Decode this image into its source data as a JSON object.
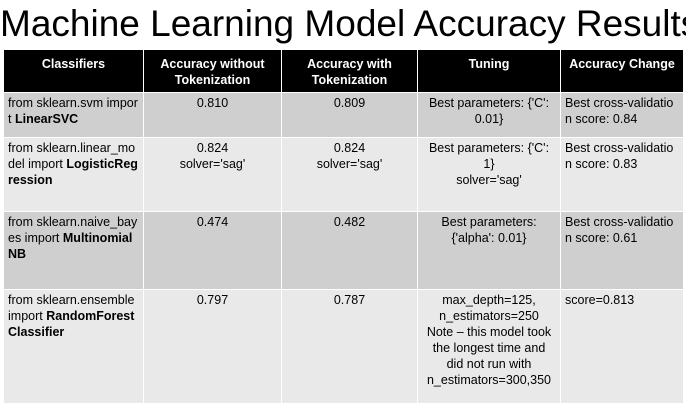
{
  "title": "Machine Learning Model Accuracy Results",
  "table": {
    "headers": [
      "Classifiers",
      "Accuracy without Tokenization",
      "Accuracy with Tokenization",
      "Tuning",
      "Accuracy Change"
    ],
    "rows": [
      {
        "classifier_import": "from sklearn.svm import",
        "classifier_name": "LinearSVC",
        "classifier_extra": "",
        "acc_without": "0.810",
        "acc_with": "0.809",
        "tuning": [
          "Best parameters: {'C':",
          "0.01}"
        ],
        "change": "Best cross-validation score: 0.84"
      },
      {
        "classifier_import": "from sklearn.linear_model import",
        "classifier_name": "LogisticRegression",
        "classifier_extra": "",
        "acc_without": "0.824",
        "acc_without_note": "solver='sag'",
        "acc_with": "0.824",
        "acc_with_note": "solver='sag'",
        "tuning": [
          "Best parameters: {'C':",
          "1}",
          "solver='sag'"
        ],
        "change": "Best cross-validation score: 0.83"
      },
      {
        "classifier_import": "from sklearn.naive_bayes import",
        "classifier_name": "MultinomialNB",
        "classifier_extra": "",
        "acc_without": "0.474",
        "acc_with": "0.482",
        "tuning": [
          "Best parameters:",
          "{'alpha': 0.01}"
        ],
        "change": "Best cross-validation score: 0.61"
      },
      {
        "classifier_import": "from sklearn.ensemble import",
        "classifier_name": "RandomForestClassifier",
        "classifier_extra": "",
        "acc_without": "0.797",
        "acc_with": "0.787",
        "tuning": [
          "max_depth=125,",
          "n_estimators=250",
          "Note – this model took",
          "the longest time and",
          "did not run with",
          "n_estimators=300,350"
        ],
        "change": "score=0.813"
      }
    ]
  }
}
